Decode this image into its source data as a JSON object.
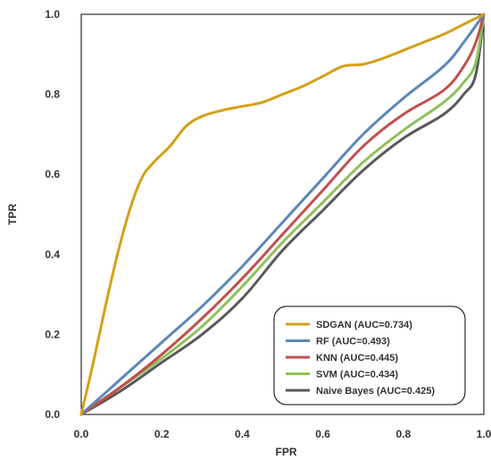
{
  "chart_data": {
    "type": "line",
    "title": "",
    "xlabel": "FPR",
    "ylabel": "TPR",
    "xlim": [
      0,
      1
    ],
    "ylim": [
      0,
      1
    ],
    "x_ticks": [
      "0.0",
      "0.2",
      "0.4",
      "0.6",
      "0.8",
      "1.0"
    ],
    "y_ticks": [
      "0.0",
      "0.2",
      "0.4",
      "0.6",
      "0.8",
      "1.0"
    ],
    "grid": false,
    "legend_position": "bottom-right",
    "series": [
      {
        "name": "SDGAN (AUC=0.734)",
        "color": "#D4A017",
        "x": [
          0.0,
          0.03,
          0.06,
          0.09,
          0.12,
          0.15,
          0.18,
          0.22,
          0.26,
          0.3,
          0.35,
          0.4,
          0.45,
          0.5,
          0.55,
          0.6,
          0.65,
          0.7,
          0.75,
          0.8,
          0.85,
          0.9,
          0.95,
          1.0
        ],
        "y": [
          0.0,
          0.13,
          0.27,
          0.4,
          0.51,
          0.59,
          0.63,
          0.67,
          0.72,
          0.745,
          0.76,
          0.77,
          0.78,
          0.8,
          0.82,
          0.845,
          0.87,
          0.875,
          0.89,
          0.91,
          0.93,
          0.95,
          0.975,
          1.0
        ]
      },
      {
        "name": "RF (AUC=0.493)",
        "color": "#5B87B8",
        "x": [
          0.0,
          0.1,
          0.2,
          0.3,
          0.4,
          0.5,
          0.6,
          0.7,
          0.8,
          0.9,
          0.95,
          1.0
        ],
        "y": [
          0.0,
          0.09,
          0.18,
          0.27,
          0.37,
          0.48,
          0.59,
          0.7,
          0.79,
          0.87,
          0.93,
          1.0
        ]
      },
      {
        "name": "KNN (AUC=0.445)",
        "color": "#C0504D",
        "x": [
          0.0,
          0.1,
          0.2,
          0.3,
          0.4,
          0.5,
          0.6,
          0.7,
          0.8,
          0.9,
          0.95,
          0.98,
          1.0
        ],
        "y": [
          0.0,
          0.07,
          0.15,
          0.24,
          0.34,
          0.45,
          0.56,
          0.67,
          0.75,
          0.81,
          0.87,
          0.93,
          1.0
        ]
      },
      {
        "name": "SVM (AUC=0.434)",
        "color": "#8DC15A",
        "x": [
          0.0,
          0.1,
          0.2,
          0.3,
          0.4,
          0.5,
          0.6,
          0.7,
          0.8,
          0.9,
          0.95,
          0.98,
          1.0
        ],
        "y": [
          0.0,
          0.07,
          0.14,
          0.22,
          0.32,
          0.43,
          0.53,
          0.63,
          0.71,
          0.78,
          0.83,
          0.88,
          1.0
        ]
      },
      {
        "name": "Naive Bayes (AUC=0.425)",
        "color": "#595959",
        "x": [
          0.0,
          0.1,
          0.2,
          0.3,
          0.4,
          0.5,
          0.6,
          0.7,
          0.8,
          0.9,
          0.95,
          0.98,
          1.0
        ],
        "y": [
          0.0,
          0.06,
          0.13,
          0.2,
          0.29,
          0.41,
          0.51,
          0.61,
          0.69,
          0.75,
          0.8,
          0.85,
          1.0
        ]
      }
    ]
  }
}
